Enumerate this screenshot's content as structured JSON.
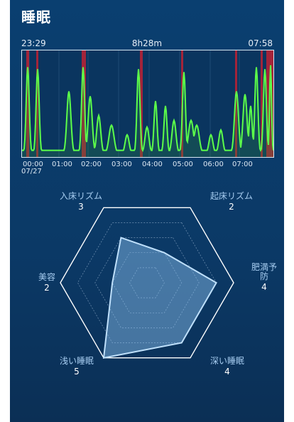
{
  "app": {
    "title": "睡眠"
  },
  "sleep_summary": {
    "start_time": "23:29",
    "duration": "8h28m",
    "end_time": "07:58"
  },
  "graph": {
    "time_ticks": [
      "00:00",
      "01:00",
      "02:00",
      "03:00",
      "04:00",
      "05:00",
      "06:00",
      "07:00"
    ],
    "start_date": "07/27",
    "colors": {
      "line": "#5cff4a",
      "wake": "#d71f2d"
    }
  },
  "radar": {
    "axes": [
      {
        "name": "起床リズム",
        "value": "2"
      },
      {
        "name": "肥満予防",
        "value": "4"
      },
      {
        "name": "深い睡眠",
        "value": "4"
      },
      {
        "name": "浅い睡眠",
        "value": "5"
      },
      {
        "name": "美容",
        "value": "2"
      },
      {
        "name": "入床リズム",
        "value": "3"
      }
    ],
    "max": 5,
    "colors": {
      "fill": "#8fc6f3",
      "grid": "#ffffff"
    }
  }
}
